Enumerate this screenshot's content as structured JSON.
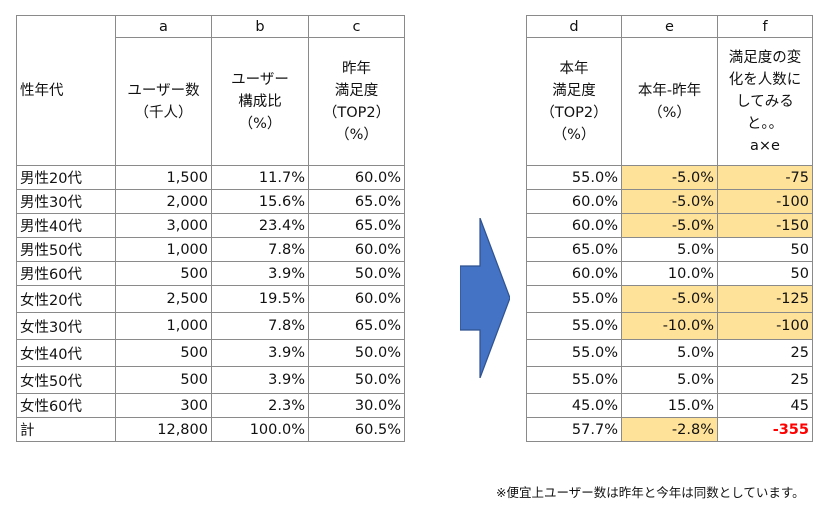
{
  "left_table": {
    "col_letters": [
      "a",
      "b",
      "c"
    ],
    "row_header_label": "性年代",
    "headers": {
      "a": "ユーザー数\n（千人）",
      "b": "ユーザー\n構成比\n（%）",
      "c": "昨年\n満足度\n（TOP2）\n（%）"
    },
    "rows": [
      {
        "label": "男性20代",
        "a": "1,500",
        "b": "11.7%",
        "c": "60.0%"
      },
      {
        "label": "男性30代",
        "a": "2,000",
        "b": "15.6%",
        "c": "65.0%"
      },
      {
        "label": "男性40代",
        "a": "3,000",
        "b": "23.4%",
        "c": "65.0%"
      },
      {
        "label": "男性50代",
        "a": "1,000",
        "b": "7.8%",
        "c": "60.0%"
      },
      {
        "label": "男性60代",
        "a": "500",
        "b": "3.9%",
        "c": "50.0%"
      },
      {
        "label": "女性20代",
        "a": "2,500",
        "b": "19.5%",
        "c": "60.0%"
      },
      {
        "label": "女性30代",
        "a": "1,000",
        "b": "7.8%",
        "c": "65.0%"
      },
      {
        "label": "女性40代",
        "a": "500",
        "b": "3.9%",
        "c": "50.0%"
      },
      {
        "label": "女性50代",
        "a": "500",
        "b": "3.9%",
        "c": "50.0%"
      },
      {
        "label": "女性60代",
        "a": "300",
        "b": "2.3%",
        "c": "30.0%"
      },
      {
        "label": "計",
        "a": "12,800",
        "b": "100.0%",
        "c": "60.5%"
      }
    ]
  },
  "right_table": {
    "col_letters": [
      "d",
      "e",
      "f"
    ],
    "headers": {
      "d": "本年\n満足度\n（TOP2）\n（%）",
      "e": "本年-昨年\n（%）",
      "f": "満足度の変\n化を人数に\nしてみる\nと。。\na×e"
    },
    "rows": [
      {
        "d": "55.0%",
        "e": "-5.0%",
        "f": "-75"
      },
      {
        "d": "60.0%",
        "e": "-5.0%",
        "f": "-100"
      },
      {
        "d": "60.0%",
        "e": "-5.0%",
        "f": "-150"
      },
      {
        "d": "65.0%",
        "e": "5.0%",
        "f": "50"
      },
      {
        "d": "60.0%",
        "e": "10.0%",
        "f": "50"
      },
      {
        "d": "55.0%",
        "e": "-5.0%",
        "f": "-125"
      },
      {
        "d": "55.0%",
        "e": "-10.0%",
        "f": "-100"
      },
      {
        "d": "55.0%",
        "e": "5.0%",
        "f": "25"
      },
      {
        "d": "55.0%",
        "e": "5.0%",
        "f": "25"
      },
      {
        "d": "45.0%",
        "e": "15.0%",
        "f": "45"
      },
      {
        "d": "57.7%",
        "e": "-2.8%",
        "f": "-355"
      }
    ]
  },
  "colors": {
    "highlight": "#ffe29a",
    "arrow_fill": "#4472c4",
    "arrow_stroke": "#2f528f",
    "total_negative": "#ff0000"
  },
  "arrow_icon": "right-arrow-icon",
  "footnote": "※便宜上ユーザー数は昨年と今年は同数としています。"
}
